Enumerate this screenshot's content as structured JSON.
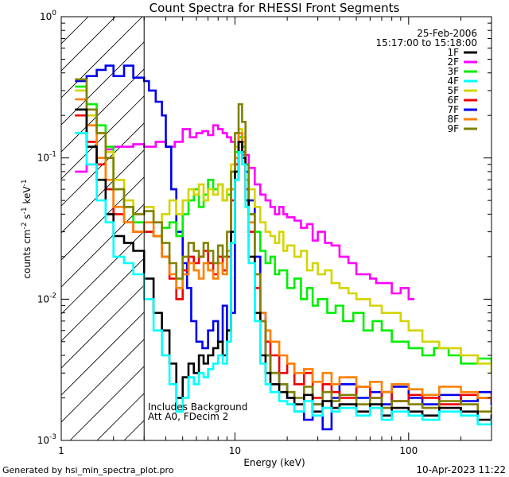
{
  "chart_data": {
    "type": "line",
    "title": "Count Spectra for RHESSI Front Segments",
    "xlabel": "Energy (keV)",
    "ylabel_main": "counts cm",
    "ylabel_exp1": "-2",
    "ylabel_mid": " s",
    "ylabel_exp2": "-1",
    "ylabel_end": " keV",
    "ylabel_exp3": "-1",
    "xscale": "log",
    "yscale": "log",
    "xlim": [
      1.0,
      300
    ],
    "ylim": [
      0.001,
      1.0
    ],
    "x_ticks": [
      {
        "value": 1,
        "label": "1"
      },
      {
        "value": 10,
        "label": "10"
      },
      {
        "value": 100,
        "label": "100"
      }
    ],
    "y_ticks": [
      {
        "value": 0.001,
        "base": "10",
        "exp": "-3"
      },
      {
        "value": 0.01,
        "base": "10",
        "exp": "-2"
      },
      {
        "value": 0.1,
        "base": "10",
        "exp": "-1"
      },
      {
        "value": 1,
        "base": "10",
        "exp": "0"
      }
    ],
    "date": "25-Feb-2006",
    "time_range": "15:17:00 to 15:18:00",
    "annotations": [
      "Includes Background",
      "Att A0, FDecim 2"
    ],
    "hatch_region_upper_keV": 3.0,
    "footer_left": "Generated by hsi_min_spectra_plot.pro",
    "footer_right": "10-Apr-2023 11:22",
    "legend": [
      {
        "name": "1F",
        "color": "#000000"
      },
      {
        "name": "2F",
        "color": "#ff00ff"
      },
      {
        "name": "3F",
        "color": "#00ee00"
      },
      {
        "name": "4F",
        "color": "#00ffff"
      },
      {
        "name": "5F",
        "color": "#d4d400"
      },
      {
        "name": "6F",
        "color": "#ee0000"
      },
      {
        "name": "7F",
        "color": "#0000ee"
      },
      {
        "name": "8F",
        "color": "#ff8000"
      },
      {
        "name": "9F",
        "color": "#808000"
      }
    ],
    "series": [
      {
        "name": "2F",
        "color": "#ff00ff",
        "x": [
          1.2,
          1.4,
          1.6,
          1.8,
          2.0,
          2.3,
          2.6,
          3.0,
          3.5,
          4.0,
          4.5,
          5.0,
          5.5,
          6.0,
          6.5,
          7.0,
          7.5,
          8.0,
          8.5,
          9.0,
          9.5,
          10.0,
          10.5,
          11.0,
          12.0,
          13.0,
          14.0,
          15.0,
          16.0,
          17.0,
          18.0,
          19.0,
          20.0,
          22.0,
          24.0,
          26.0,
          28.0,
          30.0,
          33.0,
          36.0,
          40.0,
          45.0,
          50.0,
          55.0,
          60.0,
          65.0,
          70.0,
          80.0,
          90.0,
          100.0
        ],
        "y": [
          0.08,
          0.09,
          0.1,
          0.115,
          0.12,
          0.12,
          0.125,
          0.12,
          0.13,
          0.12,
          0.13,
          0.16,
          0.14,
          0.15,
          0.155,
          0.145,
          0.17,
          0.16,
          0.15,
          0.14,
          0.13,
          0.12,
          0.11,
          0.105,
          0.085,
          0.065,
          0.055,
          0.05,
          0.045,
          0.04,
          0.045,
          0.04,
          0.038,
          0.036,
          0.032,
          0.034,
          0.026,
          0.03,
          0.025,
          0.024,
          0.02,
          0.018,
          0.015,
          0.015,
          0.014,
          0.013,
          0.013,
          0.011,
          0.012,
          0.01
        ]
      },
      {
        "name": "7F",
        "color": "#0000ee",
        "x": [
          1.2,
          1.4,
          1.6,
          1.8,
          2.0,
          2.3,
          2.6,
          3.0,
          3.2,
          3.5,
          3.8,
          4.0,
          4.3,
          4.6,
          5.0,
          5.3,
          5.6,
          6.0,
          6.5,
          7.0,
          7.5,
          8.0,
          8.5,
          9.0,
          9.5,
          10.0,
          10.5,
          11.0,
          11.5,
          12.0,
          13.0,
          14.0,
          15.0,
          16.0,
          18.0,
          20.0,
          22.0,
          25.0,
          28.0,
          32.0,
          36.0,
          40.0,
          50.0,
          60.0,
          70.0,
          80.0,
          100.0,
          120.0,
          150.0,
          200.0,
          250.0,
          300.0
        ],
        "y": [
          0.35,
          0.38,
          0.42,
          0.45,
          0.38,
          0.45,
          0.37,
          0.35,
          0.3,
          0.25,
          0.2,
          0.12,
          0.06,
          0.03,
          0.018,
          0.012,
          0.007,
          0.005,
          0.0045,
          0.006,
          0.007,
          0.005,
          0.009,
          0.006,
          0.008,
          0.07,
          0.14,
          0.12,
          0.08,
          0.05,
          0.02,
          0.008,
          0.004,
          0.003,
          0.0025,
          0.002,
          0.0016,
          0.0014,
          0.0018,
          0.0012,
          0.002,
          0.0025,
          0.002,
          0.0022,
          0.0018,
          0.0024,
          0.002,
          0.0018,
          0.0021,
          0.0019,
          0.0022,
          0.0018
        ]
      },
      {
        "name": "3F",
        "color": "#00ee00",
        "x": [
          1.2,
          1.4,
          1.6,
          1.8,
          2.0,
          2.3,
          2.6,
          3.0,
          3.4,
          3.8,
          4.2,
          4.6,
          5.0,
          5.4,
          5.8,
          6.2,
          6.6,
          7.0,
          7.5,
          8.0,
          8.5,
          9.0,
          9.5,
          10.0,
          10.5,
          11.0,
          11.5,
          12.0,
          13.0,
          14.0,
          15.0,
          16.0,
          17.0,
          18.0,
          20.0,
          22.0,
          24.0,
          26.0,
          28.0,
          30.0,
          34.0,
          38.0,
          42.0,
          48.0,
          55.0,
          62.0,
          70.0,
          80.0,
          90.0,
          100.0,
          120.0,
          140.0,
          170.0,
          200.0,
          250.0,
          300.0
        ],
        "y": [
          0.32,
          0.24,
          0.17,
          0.12,
          0.06,
          0.045,
          0.035,
          0.03,
          0.028,
          0.032,
          0.035,
          0.028,
          0.04,
          0.05,
          0.06,
          0.045,
          0.055,
          0.07,
          0.06,
          0.065,
          0.05,
          0.055,
          0.08,
          0.11,
          0.14,
          0.12,
          0.07,
          0.04,
          0.03,
          0.022,
          0.018,
          0.02,
          0.015,
          0.016,
          0.012,
          0.014,
          0.01,
          0.012,
          0.009,
          0.01,
          0.008,
          0.009,
          0.007,
          0.008,
          0.006,
          0.007,
          0.006,
          0.005,
          0.005,
          0.0045,
          0.004,
          0.0045,
          0.004,
          0.0035,
          0.0038,
          0.0035
        ]
      },
      {
        "name": "5F",
        "color": "#d4d400",
        "x": [
          1.2,
          1.4,
          1.6,
          1.8,
          2.0,
          2.3,
          2.6,
          3.0,
          3.4,
          3.8,
          4.2,
          4.6,
          5.0,
          5.4,
          5.8,
          6.2,
          6.6,
          7.0,
          7.5,
          8.0,
          8.5,
          9.0,
          9.5,
          10.0,
          10.5,
          11.0,
          11.5,
          12.0,
          13.0,
          14.0,
          15.0,
          16.0,
          17.0,
          18.0,
          19.0,
          20.0,
          22.0,
          24.0,
          26.0,
          28.0,
          30.0,
          33.0,
          36.0,
          40.0,
          45.0,
          50.0,
          55.0,
          60.0,
          70.0,
          80.0,
          90.0,
          100.0,
          120.0,
          150.0,
          200.0,
          250.0,
          300.0
        ],
        "y": [
          0.3,
          0.2,
          0.15,
          0.11,
          0.07,
          0.05,
          0.04,
          0.045,
          0.035,
          0.04,
          0.05,
          0.04,
          0.05,
          0.06,
          0.055,
          0.065,
          0.05,
          0.06,
          0.055,
          0.065,
          0.05,
          0.06,
          0.09,
          0.12,
          0.16,
          0.14,
          0.09,
          0.06,
          0.045,
          0.035,
          0.03,
          0.028,
          0.025,
          0.03,
          0.022,
          0.024,
          0.02,
          0.022,
          0.016,
          0.018,
          0.015,
          0.016,
          0.013,
          0.012,
          0.011,
          0.01,
          0.01,
          0.009,
          0.008,
          0.008,
          0.007,
          0.006,
          0.005,
          0.0045,
          0.004,
          0.0035,
          0.003
        ]
      },
      {
        "name": "6F",
        "color": "#ee0000",
        "x": [
          1.2,
          1.4,
          1.6,
          1.8,
          2.0,
          2.3,
          2.6,
          3.0,
          3.4,
          3.8,
          4.2,
          4.6,
          5.0,
          5.4,
          5.8,
          6.2,
          6.6,
          7.0,
          7.5,
          8.0,
          8.5,
          9.0,
          9.5,
          10.0,
          10.5,
          11.0,
          11.5,
          12.0,
          13.0,
          14.0,
          15.0,
          16.0,
          18.0,
          20.0,
          22.0,
          25.0,
          28.0,
          32.0,
          36.0,
          40.0,
          50.0,
          60.0,
          70.0,
          80.0,
          100.0,
          120.0,
          150.0,
          200.0,
          250.0,
          300.0
        ],
        "y": [
          0.2,
          0.13,
          0.09,
          0.06,
          0.04,
          0.035,
          0.03,
          0.03,
          0.028,
          0.02,
          0.014,
          0.01,
          0.016,
          0.02,
          0.018,
          0.02,
          0.022,
          0.018,
          0.015,
          0.02,
          0.016,
          0.02,
          0.05,
          0.09,
          0.13,
          0.11,
          0.06,
          0.03,
          0.012,
          0.007,
          0.005,
          0.004,
          0.003,
          0.0035,
          0.0025,
          0.003,
          0.002,
          0.0025,
          0.0022,
          0.002,
          0.0024,
          0.002,
          0.0022,
          0.0019,
          0.0021,
          0.002,
          0.0018,
          0.0021,
          0.002,
          0.0019
        ]
      },
      {
        "name": "8F",
        "color": "#ff8000",
        "x": [
          1.2,
          1.4,
          1.6,
          1.8,
          2.0,
          2.3,
          2.6,
          3.0,
          3.4,
          3.8,
          4.2,
          4.6,
          5.0,
          5.4,
          5.8,
          6.2,
          6.6,
          7.0,
          7.5,
          8.0,
          8.5,
          9.0,
          9.5,
          10.0,
          10.5,
          11.0,
          11.5,
          12.0,
          13.0,
          14.0,
          15.0,
          16.0,
          18.0,
          20.0,
          22.0,
          25.0,
          28.0,
          32.0,
          36.0,
          40.0,
          50.0,
          60.0,
          70.0,
          80.0,
          100.0,
          120.0,
          150.0,
          200.0,
          250.0,
          300.0
        ],
        "y": [
          0.26,
          0.17,
          0.1,
          0.07,
          0.045,
          0.035,
          0.03,
          0.035,
          0.028,
          0.02,
          0.015,
          0.012,
          0.015,
          0.018,
          0.016,
          0.014,
          0.018,
          0.016,
          0.014,
          0.018,
          0.015,
          0.022,
          0.06,
          0.1,
          0.15,
          0.13,
          0.07,
          0.035,
          0.015,
          0.008,
          0.006,
          0.005,
          0.004,
          0.0035,
          0.003,
          0.0032,
          0.0026,
          0.003,
          0.0025,
          0.0028,
          0.0024,
          0.0026,
          0.0022,
          0.0025,
          0.0023,
          0.0021,
          0.0024,
          0.0022,
          0.002,
          0.0021
        ]
      },
      {
        "name": "9F",
        "color": "#808000",
        "x": [
          1.2,
          1.4,
          1.6,
          1.8,
          2.0,
          2.3,
          2.6,
          3.0,
          3.4,
          3.8,
          4.2,
          4.6,
          5.0,
          5.4,
          5.8,
          6.2,
          6.6,
          7.0,
          7.5,
          8.0,
          8.5,
          9.0,
          9.5,
          10.0,
          10.5,
          11.0,
          11.5,
          12.0,
          13.0,
          14.0,
          15.0,
          16.0,
          18.0,
          20.0,
          22.0,
          25.0,
          28.0,
          32.0,
          36.0,
          40.0,
          50.0,
          60.0,
          70.0,
          80.0,
          100.0,
          120.0,
          150.0,
          200.0,
          250.0,
          300.0
        ],
        "y": [
          0.36,
          0.22,
          0.15,
          0.1,
          0.06,
          0.045,
          0.04,
          0.042,
          0.035,
          0.025,
          0.018,
          0.014,
          0.02,
          0.025,
          0.022,
          0.02,
          0.025,
          0.022,
          0.018,
          0.024,
          0.02,
          0.03,
          0.08,
          0.15,
          0.24,
          0.18,
          0.09,
          0.04,
          0.015,
          0.007,
          0.004,
          0.003,
          0.0025,
          0.0022,
          0.002,
          0.0024,
          0.0018,
          0.0022,
          0.0019,
          0.0021,
          0.0018,
          0.002,
          0.0017,
          0.0019,
          0.0018,
          0.0017,
          0.0019,
          0.0018,
          0.0016,
          0.0017
        ]
      },
      {
        "name": "1F",
        "color": "#000000",
        "x": [
          1.2,
          1.4,
          1.6,
          1.8,
          2.0,
          2.3,
          2.6,
          3.0,
          3.4,
          3.8,
          4.2,
          4.6,
          5.0,
          5.4,
          5.8,
          6.2,
          6.6,
          7.0,
          7.5,
          8.0,
          8.5,
          9.0,
          9.5,
          10.0,
          10.5,
          11.0,
          11.5,
          12.0,
          13.0,
          14.0,
          15.0,
          16.0,
          18.0,
          20.0,
          22.0,
          25.0,
          28.0,
          32.0,
          36.0,
          40.0,
          50.0,
          60.0,
          70.0,
          80.0,
          100.0,
          120.0,
          150.0,
          200.0,
          250.0,
          300.0
        ],
        "y": [
          0.22,
          0.12,
          0.07,
          0.04,
          0.028,
          0.025,
          0.022,
          0.014,
          0.008,
          0.006,
          0.0035,
          0.002,
          0.0028,
          0.0035,
          0.003,
          0.004,
          0.0035,
          0.004,
          0.0045,
          0.005,
          0.004,
          0.006,
          0.03,
          0.08,
          0.13,
          0.1,
          0.05,
          0.02,
          0.008,
          0.004,
          0.003,
          0.0025,
          0.0022,
          0.002,
          0.0018,
          0.0021,
          0.0016,
          0.0019,
          0.0017,
          0.0018,
          0.0016,
          0.0018,
          0.0015,
          0.0017,
          0.0016,
          0.0015,
          0.0017,
          0.0016,
          0.0014,
          0.0015
        ]
      },
      {
        "name": "4F",
        "color": "#00ffff",
        "x": [
          1.2,
          1.4,
          1.6,
          1.8,
          2.0,
          2.3,
          2.6,
          3.0,
          3.4,
          3.8,
          4.2,
          4.6,
          5.0,
          5.4,
          5.8,
          6.2,
          6.6,
          7.0,
          7.5,
          8.0,
          8.5,
          9.0,
          9.5,
          10.0,
          10.5,
          11.0,
          11.5,
          12.0,
          13.0,
          14.0,
          15.0,
          16.0,
          18.0,
          20.0,
          22.0,
          25.0,
          28.0,
          32.0,
          36.0,
          40.0,
          50.0,
          60.0,
          70.0,
          80.0,
          100.0,
          120.0,
          150.0,
          200.0,
          250.0,
          300.0
        ],
        "y": [
          0.15,
          0.09,
          0.05,
          0.035,
          0.02,
          0.018,
          0.015,
          0.01,
          0.006,
          0.004,
          0.0025,
          0.0016,
          0.002,
          0.0028,
          0.0025,
          0.003,
          0.0028,
          0.0032,
          0.0035,
          0.004,
          0.0035,
          0.005,
          0.025,
          0.07,
          0.11,
          0.09,
          0.045,
          0.018,
          0.007,
          0.0035,
          0.0025,
          0.0022,
          0.0019,
          0.0018,
          0.0016,
          0.0019,
          0.0015,
          0.0017,
          0.0016,
          0.0017,
          0.0015,
          0.0017,
          0.0014,
          0.0016,
          0.0015,
          0.0014,
          0.0016,
          0.0015,
          0.0013,
          0.0014
        ]
      }
    ]
  }
}
